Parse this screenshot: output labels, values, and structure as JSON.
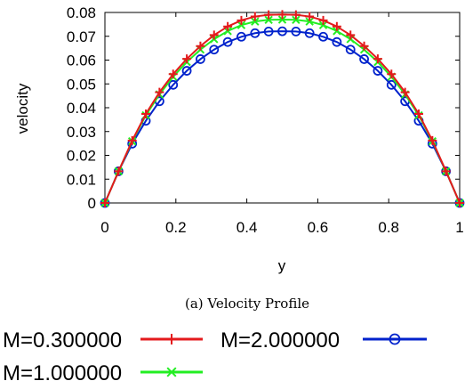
{
  "chart_data": {
    "type": "line",
    "title": "",
    "caption": "(a) Velocity Profile",
    "xlabel": "y",
    "ylabel": "velocity",
    "xlim": [
      0,
      1
    ],
    "ylim": [
      0,
      0.08
    ],
    "xticks": [
      "0",
      "0.2",
      "0.4",
      "0.6",
      "0.8",
      "1"
    ],
    "yticks": [
      "0",
      "0.01",
      "0.02",
      "0.03",
      "0.04",
      "0.05",
      "0.06",
      "0.07",
      "0.08"
    ],
    "grid": false,
    "legend_position": "bottom",
    "x": [
      0,
      0.0385,
      0.0769,
      0.1154,
      0.1538,
      0.1923,
      0.2308,
      0.2692,
      0.3077,
      0.3462,
      0.3846,
      0.4231,
      0.4615,
      0.5,
      0.5385,
      0.5769,
      0.6154,
      0.6538,
      0.6923,
      0.7308,
      0.7692,
      0.8077,
      0.8462,
      0.8846,
      0.9231,
      0.9615,
      1
    ],
    "series": [
      {
        "name": "M=0.300000",
        "color": "#e41a1c",
        "marker": "plus",
        "values": [
          0,
          0.0133,
          0.0262,
          0.0374,
          0.0465,
          0.0541,
          0.0605,
          0.0659,
          0.0705,
          0.0741,
          0.0767,
          0.0783,
          0.079,
          0.0791,
          0.079,
          0.0783,
          0.0767,
          0.0741,
          0.0705,
          0.0659,
          0.0605,
          0.0541,
          0.0465,
          0.0374,
          0.0262,
          0.0133,
          0
        ]
      },
      {
        "name": "M=1.000000",
        "color": "#22ee22",
        "marker": "cross",
        "values": [
          0,
          0.0133,
          0.0259,
          0.0368,
          0.0456,
          0.053,
          0.0592,
          0.0644,
          0.0688,
          0.0722,
          0.0747,
          0.0762,
          0.0769,
          0.077,
          0.0769,
          0.0762,
          0.0747,
          0.0722,
          0.0688,
          0.0644,
          0.0592,
          0.053,
          0.0456,
          0.0368,
          0.0259,
          0.0133,
          0
        ]
      },
      {
        "name": "M=2.000000",
        "color": "#0022cc",
        "marker": "circle",
        "values": [
          0,
          0.0133,
          0.0249,
          0.0345,
          0.0427,
          0.0496,
          0.0555,
          0.0604,
          0.0644,
          0.0676,
          0.0698,
          0.0713,
          0.072,
          0.0721,
          0.072,
          0.0713,
          0.0698,
          0.0676,
          0.0644,
          0.0604,
          0.0555,
          0.0496,
          0.0427,
          0.0345,
          0.0249,
          0.0133,
          0
        ]
      }
    ]
  }
}
